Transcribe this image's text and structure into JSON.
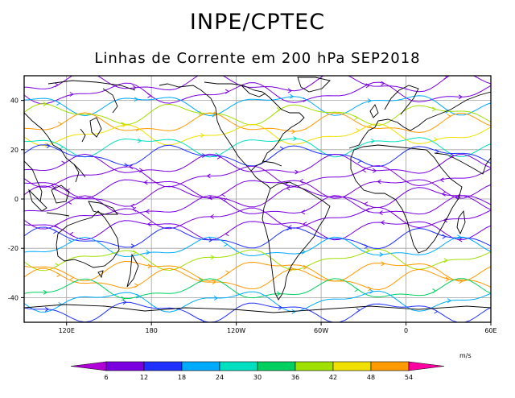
{
  "header": {
    "title": "INPE/CPTEC",
    "subtitle": "Linhas de Corrente em 200 hPa SEP2018"
  },
  "map": {
    "projection": "equirectangular",
    "lon_range": [
      90,
      420
    ],
    "lat_range": [
      -50,
      50
    ],
    "x_tick_labels": [
      {
        "lon": 120,
        "label": "120E"
      },
      {
        "lon": 180,
        "label": "180"
      },
      {
        "lon": 240,
        "label": "120W"
      },
      {
        "lon": 300,
        "label": "60W"
      },
      {
        "lon": 360,
        "label": "0"
      },
      {
        "lon": 420,
        "label": "60E"
      }
    ],
    "y_tick_labels": [
      {
        "lat": 40,
        "label": "40"
      },
      {
        "lat": 20,
        "label": "20"
      },
      {
        "lat": 0,
        "label": "0"
      },
      {
        "lat": -20,
        "label": "-20"
      },
      {
        "lat": -40,
        "label": "-40"
      }
    ],
    "grid": true,
    "grid_color": "#a0a0a0"
  },
  "colorbar": {
    "unit_label": "m/s",
    "ticks": [
      "6",
      "12",
      "18",
      "24",
      "30",
      "36",
      "42",
      "48",
      "54"
    ],
    "colors": [
      "#b000d8",
      "#7a00e0",
      "#2030ff",
      "#00aaff",
      "#00e0c0",
      "#00d060",
      "#a0e000",
      "#f0e000",
      "#ff9a00",
      "#ff3030",
      "#ff00a0"
    ]
  }
}
